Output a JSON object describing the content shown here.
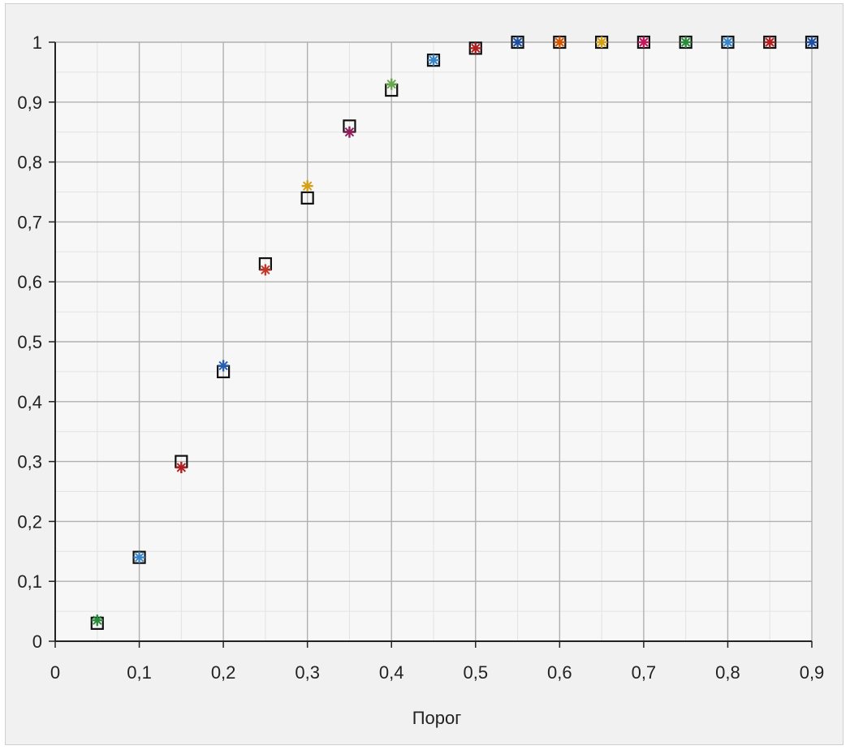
{
  "chart_data": {
    "type": "scatter",
    "title": "",
    "xlabel": "Порог",
    "ylabel": "",
    "xlim": [
      0,
      0.9
    ],
    "ylim": [
      0,
      1
    ],
    "grid": true,
    "x_ticks": [
      "0",
      "0,1",
      "0,2",
      "0,3",
      "0,4",
      "0,5",
      "0,6",
      "0,7",
      "0,8",
      "0,9"
    ],
    "y_ticks": [
      "0",
      "0,1",
      "0,2",
      "0,3",
      "0,4",
      "0,5",
      "0,6",
      "0,7",
      "0,8",
      "0,9",
      "1"
    ],
    "series": [
      {
        "marker": "square",
        "color": "#111111",
        "x": [
          0.05,
          0.1,
          0.15,
          0.2,
          0.25,
          0.3,
          0.35,
          0.4,
          0.45,
          0.5,
          0.55,
          0.6,
          0.65,
          0.7,
          0.75,
          0.8,
          0.85,
          0.9
        ],
        "y": [
          0.03,
          0.14,
          0.3,
          0.45,
          0.63,
          0.74,
          0.86,
          0.92,
          0.97,
          0.99,
          1.0,
          1.0,
          1.0,
          1.0,
          1.0,
          1.0,
          1.0,
          1.0
        ]
      },
      {
        "marker": "star",
        "colors": [
          "#2a8c3a",
          "#3a86c8",
          "#b21f1f",
          "#2a5fb0",
          "#c0392b",
          "#d4a017",
          "#8e1f5a",
          "#6aa84f",
          "#3a86c8",
          "#b21f1f",
          "#1f4fa0",
          "#d35400",
          "#d4a017",
          "#c2185b",
          "#2a8c3a",
          "#3a86c8",
          "#b21f1f",
          "#1f4fa0"
        ],
        "x": [
          0.05,
          0.1,
          0.15,
          0.2,
          0.25,
          0.3,
          0.35,
          0.4,
          0.45,
          0.5,
          0.55,
          0.6,
          0.65,
          0.7,
          0.75,
          0.8,
          0.85,
          0.9
        ],
        "y": [
          0.035,
          0.14,
          0.29,
          0.46,
          0.62,
          0.76,
          0.85,
          0.93,
          0.97,
          0.99,
          1.0,
          1.0,
          1.0,
          1.0,
          1.0,
          1.0,
          1.0,
          1.0
        ]
      }
    ]
  }
}
